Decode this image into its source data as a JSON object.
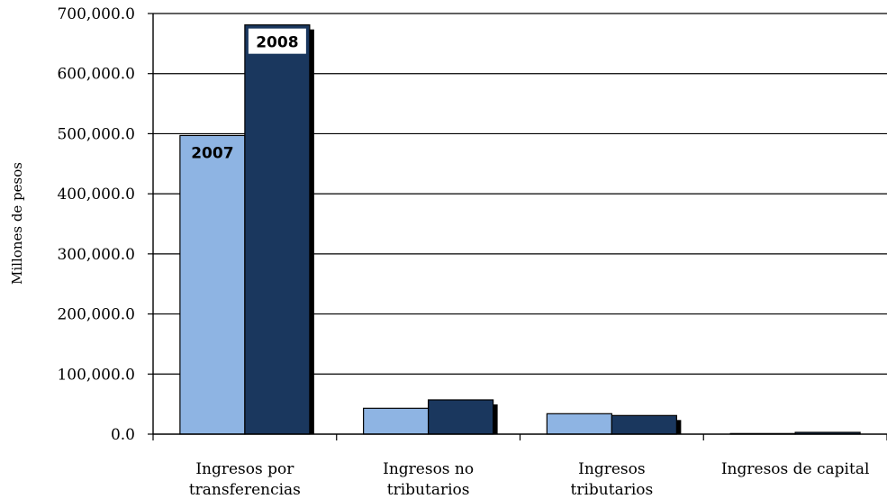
{
  "chart_data": {
    "type": "bar",
    "ylabel": "Millones de pesos",
    "ylim": [
      0,
      700000
    ],
    "yticks": [
      "0.0",
      "100,000.0",
      "200,000.0",
      "300,000.0",
      "400,000.0",
      "500,000.0",
      "600,000.0",
      "700,000.0"
    ],
    "categories": [
      [
        "Ingresos por",
        "transferencias"
      ],
      [
        "Ingresos no",
        "tributarios"
      ],
      [
        "Ingresos",
        "tributarios"
      ],
      [
        "Ingresos de capital"
      ]
    ],
    "series": [
      {
        "name": "2007",
        "color": "#8eb4e3",
        "values": [
          497000,
          43000,
          34000,
          1000
        ]
      },
      {
        "name": "2008",
        "color": "#1a375e",
        "values": [
          681000,
          57000,
          31000,
          3000
        ]
      }
    ],
    "grid": true,
    "legend": "in-plot labels on first category bars"
  }
}
